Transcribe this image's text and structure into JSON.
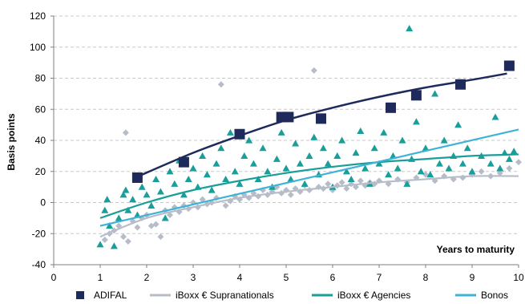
{
  "chart_data": {
    "type": "scatter",
    "xlabel": "Years to maturity",
    "ylabel": "Basis points",
    "xlim": [
      0,
      10
    ],
    "ylim": [
      -40,
      120
    ],
    "x_ticks": [
      0,
      1,
      2,
      3,
      4,
      5,
      6,
      7,
      8,
      9,
      10
    ],
    "y_ticks": [
      -40,
      -20,
      0,
      20,
      40,
      60,
      80,
      100,
      120
    ],
    "grid": "horizontal dashed",
    "legend_position": "bottom",
    "series": [
      {
        "name": "ADIFAL",
        "marker": "square",
        "color": "#1f2a5c",
        "points": [
          [
            1.8,
            16
          ],
          [
            2.8,
            26
          ],
          [
            4.0,
            44
          ],
          [
            4.9,
            55
          ],
          [
            5.05,
            55
          ],
          [
            5.75,
            54
          ],
          [
            7.25,
            61
          ],
          [
            7.8,
            69
          ],
          [
            8.75,
            76
          ],
          [
            9.8,
            88
          ]
        ],
        "fit": [
          [
            1.75,
            16
          ],
          [
            3,
            32
          ],
          [
            4,
            43
          ],
          [
            5,
            53
          ],
          [
            6,
            61
          ],
          [
            7,
            68
          ],
          [
            8,
            74
          ],
          [
            9,
            79
          ],
          [
            9.75,
            83
          ]
        ]
      },
      {
        "name": "iBoxx € Supranationals",
        "marker": "diamond",
        "color": "#b6bdc9",
        "points": [
          [
            1.1,
            -24
          ],
          [
            1.2,
            -20
          ],
          [
            1.3,
            -18
          ],
          [
            1.4,
            -15
          ],
          [
            1.5,
            -22
          ],
          [
            1.55,
            45
          ],
          [
            1.6,
            -25
          ],
          [
            1.7,
            -12
          ],
          [
            1.8,
            -16
          ],
          [
            1.9,
            -10
          ],
          [
            2.0,
            -8
          ],
          [
            2.1,
            -15
          ],
          [
            2.2,
            -14
          ],
          [
            2.3,
            -22
          ],
          [
            2.4,
            -5
          ],
          [
            2.5,
            -8
          ],
          [
            2.6,
            -3
          ],
          [
            2.7,
            -6
          ],
          [
            2.8,
            -2
          ],
          [
            2.9,
            -4
          ],
          [
            3.0,
            0
          ],
          [
            3.1,
            -3
          ],
          [
            3.2,
            2
          ],
          [
            3.3,
            -1
          ],
          [
            3.4,
            0
          ],
          [
            3.5,
            3
          ],
          [
            3.6,
            76
          ],
          [
            3.7,
            -2
          ],
          [
            3.8,
            1
          ],
          [
            3.9,
            4
          ],
          [
            4.0,
            2
          ],
          [
            4.1,
            5
          ],
          [
            4.2,
            3
          ],
          [
            4.3,
            6
          ],
          [
            4.4,
            4
          ],
          [
            4.5,
            8
          ],
          [
            4.6,
            5
          ],
          [
            4.7,
            7
          ],
          [
            4.8,
            10
          ],
          [
            4.9,
            6
          ],
          [
            5.0,
            8
          ],
          [
            5.1,
            5
          ],
          [
            5.2,
            9
          ],
          [
            5.3,
            7
          ],
          [
            5.4,
            11
          ],
          [
            5.5,
            8
          ],
          [
            5.6,
            85
          ],
          [
            5.7,
            10
          ],
          [
            5.8,
            9
          ],
          [
            5.9,
            12
          ],
          [
            6.0,
            8
          ],
          [
            6.1,
            11
          ],
          [
            6.2,
            13
          ],
          [
            6.3,
            9
          ],
          [
            6.4,
            12
          ],
          [
            6.5,
            10
          ],
          [
            6.6,
            14
          ],
          [
            6.7,
            11
          ],
          [
            6.8,
            13
          ],
          [
            6.9,
            12
          ],
          [
            7.0,
            14
          ],
          [
            7.2,
            12
          ],
          [
            7.4,
            15
          ],
          [
            7.6,
            13
          ],
          [
            7.8,
            16
          ],
          [
            8.0,
            18
          ],
          [
            8.2,
            14
          ],
          [
            8.4,
            17
          ],
          [
            8.6,
            15
          ],
          [
            8.8,
            16
          ],
          [
            9.0,
            18
          ],
          [
            9.2,
            20
          ],
          [
            9.4,
            17
          ],
          [
            9.6,
            19
          ],
          [
            9.8,
            22
          ],
          [
            10.0,
            26
          ]
        ],
        "fit": [
          [
            1,
            -22
          ],
          [
            2,
            -10
          ],
          [
            3,
            -3
          ],
          [
            4,
            3
          ],
          [
            5,
            7
          ],
          [
            6,
            10
          ],
          [
            7,
            13
          ],
          [
            8,
            15
          ],
          [
            9,
            17
          ],
          [
            10,
            17
          ]
        ]
      },
      {
        "name": "iBoxx € Agencies",
        "marker": "triangle",
        "color": "#199e9a",
        "points": [
          [
            1.0,
            -27
          ],
          [
            1.1,
            -5
          ],
          [
            1.15,
            2
          ],
          [
            1.2,
            -15
          ],
          [
            1.3,
            -28
          ],
          [
            1.4,
            -10
          ],
          [
            1.5,
            5
          ],
          [
            1.55,
            8
          ],
          [
            1.6,
            -5
          ],
          [
            1.7,
            2
          ],
          [
            1.8,
            -8
          ],
          [
            1.9,
            10
          ],
          [
            2.0,
            5
          ],
          [
            2.1,
            -2
          ],
          [
            2.2,
            15
          ],
          [
            2.3,
            7
          ],
          [
            2.4,
            -10
          ],
          [
            2.5,
            20
          ],
          [
            2.6,
            12
          ],
          [
            2.7,
            27
          ],
          [
            2.8,
            5
          ],
          [
            2.9,
            15
          ],
          [
            3.0,
            22
          ],
          [
            3.1,
            10
          ],
          [
            3.2,
            30
          ],
          [
            3.3,
            18
          ],
          [
            3.4,
            8
          ],
          [
            3.5,
            25
          ],
          [
            3.6,
            35
          ],
          [
            3.7,
            15
          ],
          [
            3.8,
            45
          ],
          [
            3.9,
            20
          ],
          [
            4.0,
            12
          ],
          [
            4.1,
            30
          ],
          [
            4.2,
            40
          ],
          [
            4.3,
            25
          ],
          [
            4.4,
            15
          ],
          [
            4.5,
            35
          ],
          [
            4.6,
            20
          ],
          [
            4.7,
            10
          ],
          [
            4.8,
            28
          ],
          [
            4.9,
            45
          ],
          [
            5.0,
            22
          ],
          [
            5.1,
            15
          ],
          [
            5.2,
            38
          ],
          [
            5.3,
            25
          ],
          [
            5.4,
            12
          ],
          [
            5.5,
            30
          ],
          [
            5.6,
            42
          ],
          [
            5.7,
            18
          ],
          [
            5.8,
            35
          ],
          [
            5.9,
            25
          ],
          [
            6.0,
            10
          ],
          [
            6.1,
            30
          ],
          [
            6.2,
            40
          ],
          [
            6.3,
            20
          ],
          [
            6.4,
            15
          ],
          [
            6.5,
            32
          ],
          [
            6.6,
            46
          ],
          [
            6.7,
            22
          ],
          [
            6.8,
            12
          ],
          [
            6.9,
            35
          ],
          [
            7.0,
            25
          ],
          [
            7.1,
            45
          ],
          [
            7.2,
            18
          ],
          [
            7.3,
            30
          ],
          [
            7.4,
            22
          ],
          [
            7.5,
            40
          ],
          [
            7.6,
            12
          ],
          [
            7.65,
            112
          ],
          [
            7.7,
            28
          ],
          [
            7.8,
            52
          ],
          [
            7.9,
            20
          ],
          [
            8.0,
            35
          ],
          [
            8.1,
            18
          ],
          [
            8.2,
            70
          ],
          [
            8.3,
            25
          ],
          [
            8.4,
            40
          ],
          [
            8.5,
            22
          ],
          [
            8.6,
            30
          ],
          [
            8.7,
            50
          ],
          [
            8.8,
            25
          ],
          [
            8.9,
            35
          ],
          [
            9.0,
            20
          ],
          [
            9.2,
            30
          ],
          [
            9.4,
            25
          ],
          [
            9.5,
            55
          ],
          [
            9.6,
            22
          ],
          [
            9.7,
            32
          ],
          [
            9.8,
            28
          ],
          [
            9.9,
            33
          ]
        ],
        "fit": [
          [
            1,
            -10
          ],
          [
            2,
            0
          ],
          [
            3,
            8
          ],
          [
            4,
            14
          ],
          [
            5,
            19
          ],
          [
            6,
            23
          ],
          [
            7,
            26
          ],
          [
            8,
            28
          ],
          [
            9,
            30
          ],
          [
            10,
            31
          ]
        ]
      },
      {
        "name": "Bonos",
        "marker": "none",
        "color": "#3fb3d7",
        "points": [],
        "fit": [
          [
            1,
            -15
          ],
          [
            10,
            47
          ]
        ]
      }
    ]
  }
}
